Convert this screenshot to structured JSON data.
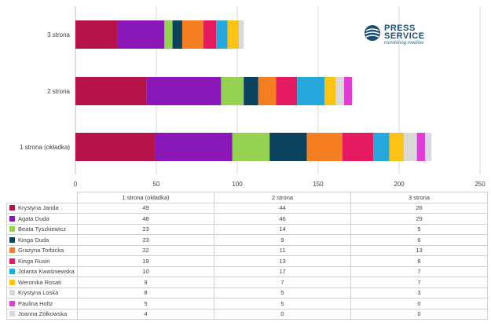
{
  "logo": {
    "line1": "PRESS",
    "line2": "SERVICE",
    "tagline": "monitoring mediów"
  },
  "chart_data": {
    "type": "bar",
    "orientation": "horizontal",
    "stacked": true,
    "categories": [
      "1 strona (okładka)",
      "2 strona",
      "3 strona"
    ],
    "xlim": [
      0,
      250
    ],
    "xticks": [
      "0",
      "50",
      "100",
      "150",
      "200",
      "250"
    ],
    "grid": true,
    "series": [
      {
        "name": "Krystyna Janda",
        "color": "#b5124a",
        "values": [
          49,
          44,
          26
        ]
      },
      {
        "name": "Agata Duda",
        "color": "#8a17b8",
        "values": [
          48,
          46,
          29
        ]
      },
      {
        "name": "Beata Tyszkiewicz",
        "color": "#96d251",
        "values": [
          23,
          14,
          5
        ]
      },
      {
        "name": "Kinga Duda",
        "color": "#0b425e",
        "values": [
          23,
          9,
          6
        ]
      },
      {
        "name": "Grażyna Torbicka",
        "color": "#f57e21",
        "values": [
          22,
          11,
          13
        ]
      },
      {
        "name": "Kinga Rusin",
        "color": "#e51a61",
        "values": [
          19,
          13,
          8
        ]
      },
      {
        "name": "Jolanta Kwaśniewska",
        "color": "#27a8dc",
        "values": [
          10,
          17,
          7
        ]
      },
      {
        "name": "Weronika Rosati",
        "color": "#fcc314",
        "values": [
          9,
          7,
          7
        ]
      },
      {
        "name": "Krystyna Loska",
        "color": "#d9d9d9",
        "values": [
          8,
          5,
          3
        ]
      },
      {
        "name": "Paulina Holtz",
        "color": "#e43ad6",
        "values": [
          5,
          5,
          0
        ]
      },
      {
        "name": "Joanna Żółkowska",
        "color": "#d8d8e6",
        "values": [
          4,
          0,
          0
        ]
      }
    ]
  }
}
